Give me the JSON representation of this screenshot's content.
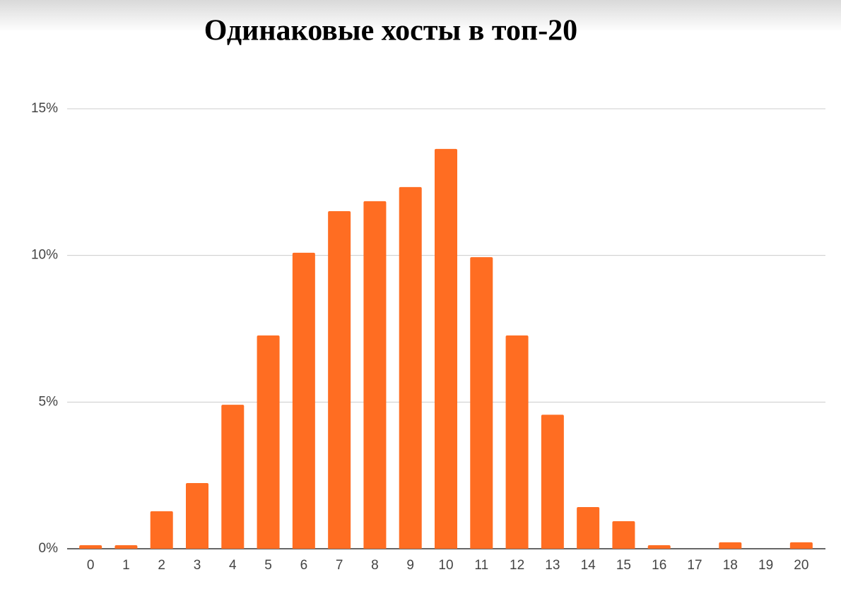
{
  "chart_data": {
    "type": "bar",
    "title": "Одинаковые хосты в топ-20",
    "categories": [
      "0",
      "1",
      "2",
      "3",
      "4",
      "5",
      "6",
      "7",
      "8",
      "9",
      "10",
      "11",
      "12",
      "13",
      "14",
      "15",
      "16",
      "17",
      "18",
      "19",
      "20"
    ],
    "values": [
      0.12,
      0.12,
      1.28,
      2.24,
      4.91,
      7.27,
      10.09,
      11.51,
      11.85,
      12.33,
      13.63,
      9.94,
      7.27,
      4.57,
      1.42,
      0.94,
      0.12,
      0,
      0.22,
      0,
      0.22
    ],
    "color": "#ff6d22",
    "ylim": [
      0,
      15
    ],
    "yticks": [
      {
        "value": 0,
        "label": "0%"
      },
      {
        "value": 5,
        "label": "5%"
      },
      {
        "value": 10,
        "label": "10%"
      },
      {
        "value": 15,
        "label": "15%"
      }
    ],
    "grid": true
  }
}
